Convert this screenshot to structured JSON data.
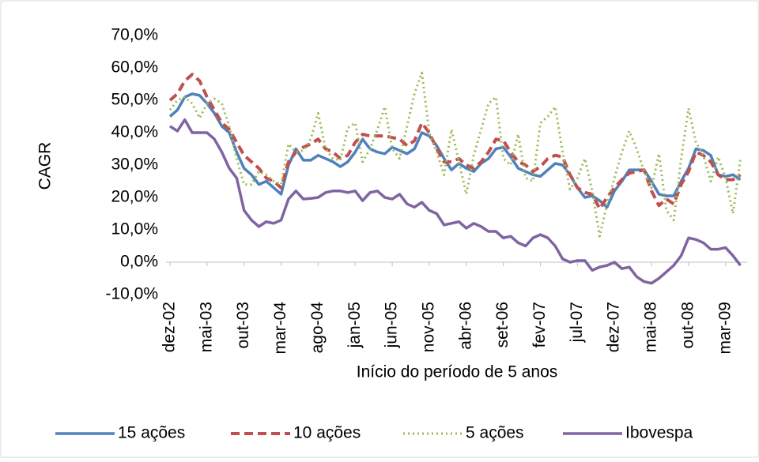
{
  "chart_data": {
    "type": "line",
    "x_label": "Início do período de 5 anos",
    "y_label": "CAGR",
    "categories": [
      "dez-02",
      null,
      null,
      null,
      null,
      "mai-03",
      null,
      null,
      null,
      null,
      "out-03",
      null,
      null,
      null,
      null,
      "mar-04",
      null,
      null,
      null,
      null,
      "ago-04",
      null,
      null,
      null,
      null,
      "jan-05",
      null,
      null,
      null,
      null,
      "jun-05",
      null,
      null,
      null,
      null,
      "nov-05",
      null,
      null,
      null,
      null,
      "abr-06",
      null,
      null,
      null,
      null,
      "set-06",
      null,
      null,
      null,
      null,
      "fev-07",
      null,
      null,
      null,
      null,
      "jul-07",
      null,
      null,
      null,
      null,
      "dez-07",
      null,
      null,
      null,
      null,
      "mai-08",
      null,
      null,
      null,
      null,
      "out-08",
      null,
      null,
      null,
      null,
      "mar-09",
      null,
      null
    ],
    "ylim": [
      -10,
      70
    ],
    "yticks": [
      {
        "value": -10,
        "label": "-10,0%"
      },
      {
        "value": 0,
        "label": "0,0%"
      },
      {
        "value": 10,
        "label": "10,0%"
      },
      {
        "value": 20,
        "label": "20,0%"
      },
      {
        "value": 30,
        "label": "30,0%"
      },
      {
        "value": 40,
        "label": "40,0%"
      },
      {
        "value": 50,
        "label": "50,0%"
      },
      {
        "value": 60,
        "label": "60,0%"
      },
      {
        "value": 70,
        "label": "70,0%"
      }
    ],
    "grid": false,
    "legend": "bottom",
    "series": [
      {
        "name": "15 ações",
        "color": "#4f81bd",
        "style": "solid",
        "values": [
          45,
          47,
          51,
          52,
          51.5,
          49,
          46,
          42,
          40,
          34,
          29,
          27,
          24,
          25,
          23,
          21,
          30,
          35,
          31.5,
          31.5,
          33,
          32,
          31,
          29.5,
          31,
          34,
          38,
          35,
          34,
          33.5,
          35.5,
          34.5,
          33.5,
          35,
          40,
          39,
          36,
          32,
          28.5,
          30.5,
          29,
          28,
          30.5,
          32,
          35,
          35.5,
          32.5,
          29,
          28,
          27,
          26.5,
          28.5,
          30.5,
          30,
          27,
          23,
          20,
          20.5,
          19,
          17,
          22,
          25,
          28.5,
          28.5,
          28.5,
          25,
          21,
          20.5,
          20.5,
          25,
          29,
          35,
          34.5,
          33,
          27,
          26.5,
          27,
          25.5
        ]
      },
      {
        "name": "10 ações",
        "color": "#c0504d",
        "style": "dashed",
        "values": [
          50,
          52,
          56,
          58,
          56,
          51,
          47,
          43,
          41,
          37,
          33,
          31,
          29,
          26,
          25,
          23,
          31,
          34,
          35.5,
          36.5,
          38,
          35,
          34,
          32,
          33,
          37,
          39.5,
          39,
          39,
          39,
          38.5,
          38,
          36,
          37.5,
          43,
          40,
          35,
          31,
          31,
          32,
          30,
          29,
          31,
          34,
          38,
          37.5,
          34,
          31,
          30,
          28,
          29.5,
          32,
          33,
          32.5,
          27,
          23,
          21.5,
          21,
          16.5,
          20,
          23,
          25.5,
          27.5,
          28,
          28.5,
          22,
          17.5,
          19.5,
          18,
          24,
          28,
          34,
          33,
          31,
          27,
          25.5,
          25.5,
          27
        ]
      },
      {
        "name": "5 ações",
        "color": "#9bbb59",
        "style": "dotted",
        "values": [
          47,
          50,
          51,
          49,
          44.5,
          49,
          50.5,
          49,
          42,
          32,
          24,
          24,
          28,
          27,
          25,
          24,
          36.5,
          34,
          34.5,
          38,
          46,
          35,
          32,
          31.5,
          41.5,
          43,
          31,
          35,
          41,
          48,
          35,
          32,
          42,
          52,
          58.5,
          40,
          34,
          27,
          41,
          31,
          21,
          33,
          41,
          49,
          51,
          32,
          30,
          39.5,
          26,
          25,
          43,
          45,
          48,
          34,
          22.5,
          26,
          32,
          22,
          8,
          18,
          26,
          34,
          40.5,
          35,
          28,
          23,
          33.5,
          16,
          13,
          32,
          47.5,
          37,
          33,
          25,
          32.5,
          26,
          15,
          32
        ]
      },
      {
        "name": "Ibovespa",
        "color": "#8064a2",
        "style": "solid",
        "values": [
          42,
          40.5,
          44,
          40,
          40,
          40,
          38,
          34,
          29,
          26,
          16,
          13,
          11,
          12.5,
          12,
          13,
          19.5,
          22,
          19.5,
          19.7,
          20,
          21.5,
          22,
          22,
          21.5,
          22,
          19,
          21.5,
          22,
          20,
          19.5,
          21,
          18,
          17,
          18.5,
          16,
          15,
          11.5,
          12,
          12.5,
          10.5,
          12,
          11,
          9.5,
          9.5,
          7.5,
          8,
          6,
          5,
          7.5,
          8.5,
          7.5,
          5,
          1,
          0,
          0.5,
          0.5,
          -2.5,
          -1.5,
          -1,
          0,
          -2,
          -1.5,
          -4.5,
          -6,
          -6.5,
          -5,
          -3,
          -1,
          2,
          7.5,
          7,
          6,
          4,
          4,
          4.5,
          2,
          -1
        ]
      }
    ]
  }
}
